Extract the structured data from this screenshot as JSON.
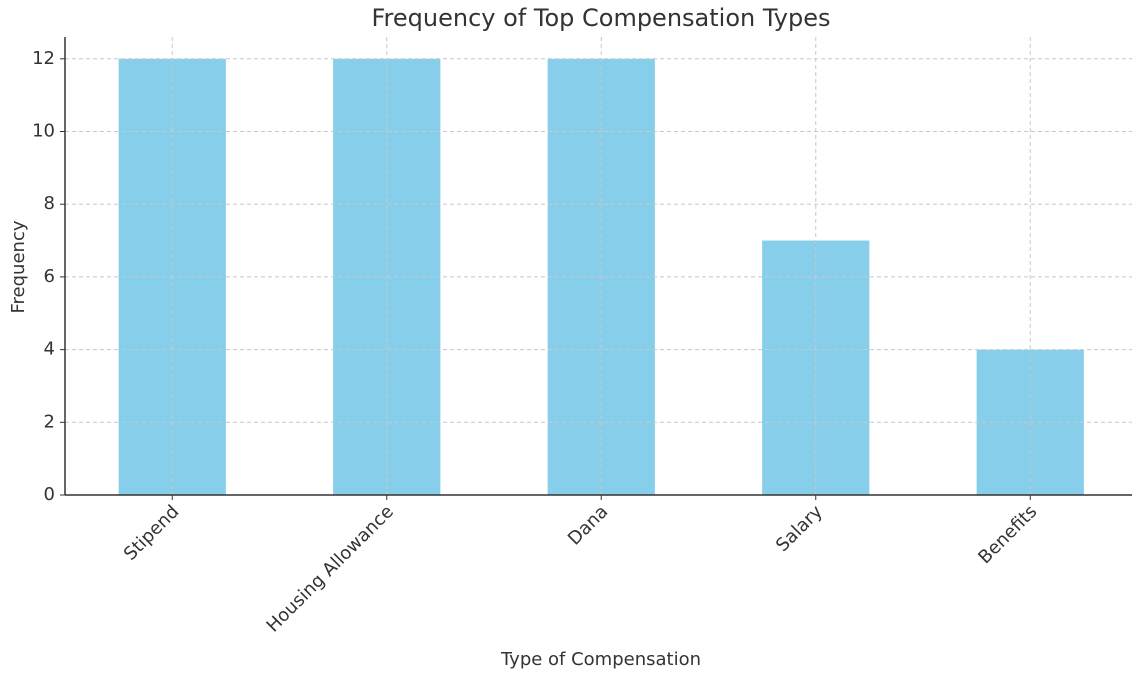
{
  "chart_data": {
    "type": "bar",
    "title": "Frequency of Top Compensation Types",
    "x_label": "Type of Compensation",
    "y_label": "Frequency",
    "categories": [
      "Stipend",
      "Housing Allowance",
      "Dana",
      "Salary",
      "Benefits"
    ],
    "values": [
      12,
      12,
      12,
      7,
      4
    ],
    "color": "#87ceeb",
    "ylim": [
      0,
      12.6
    ],
    "yticks": [
      0,
      2,
      4,
      6,
      8,
      10,
      12
    ],
    "grid": true
  }
}
